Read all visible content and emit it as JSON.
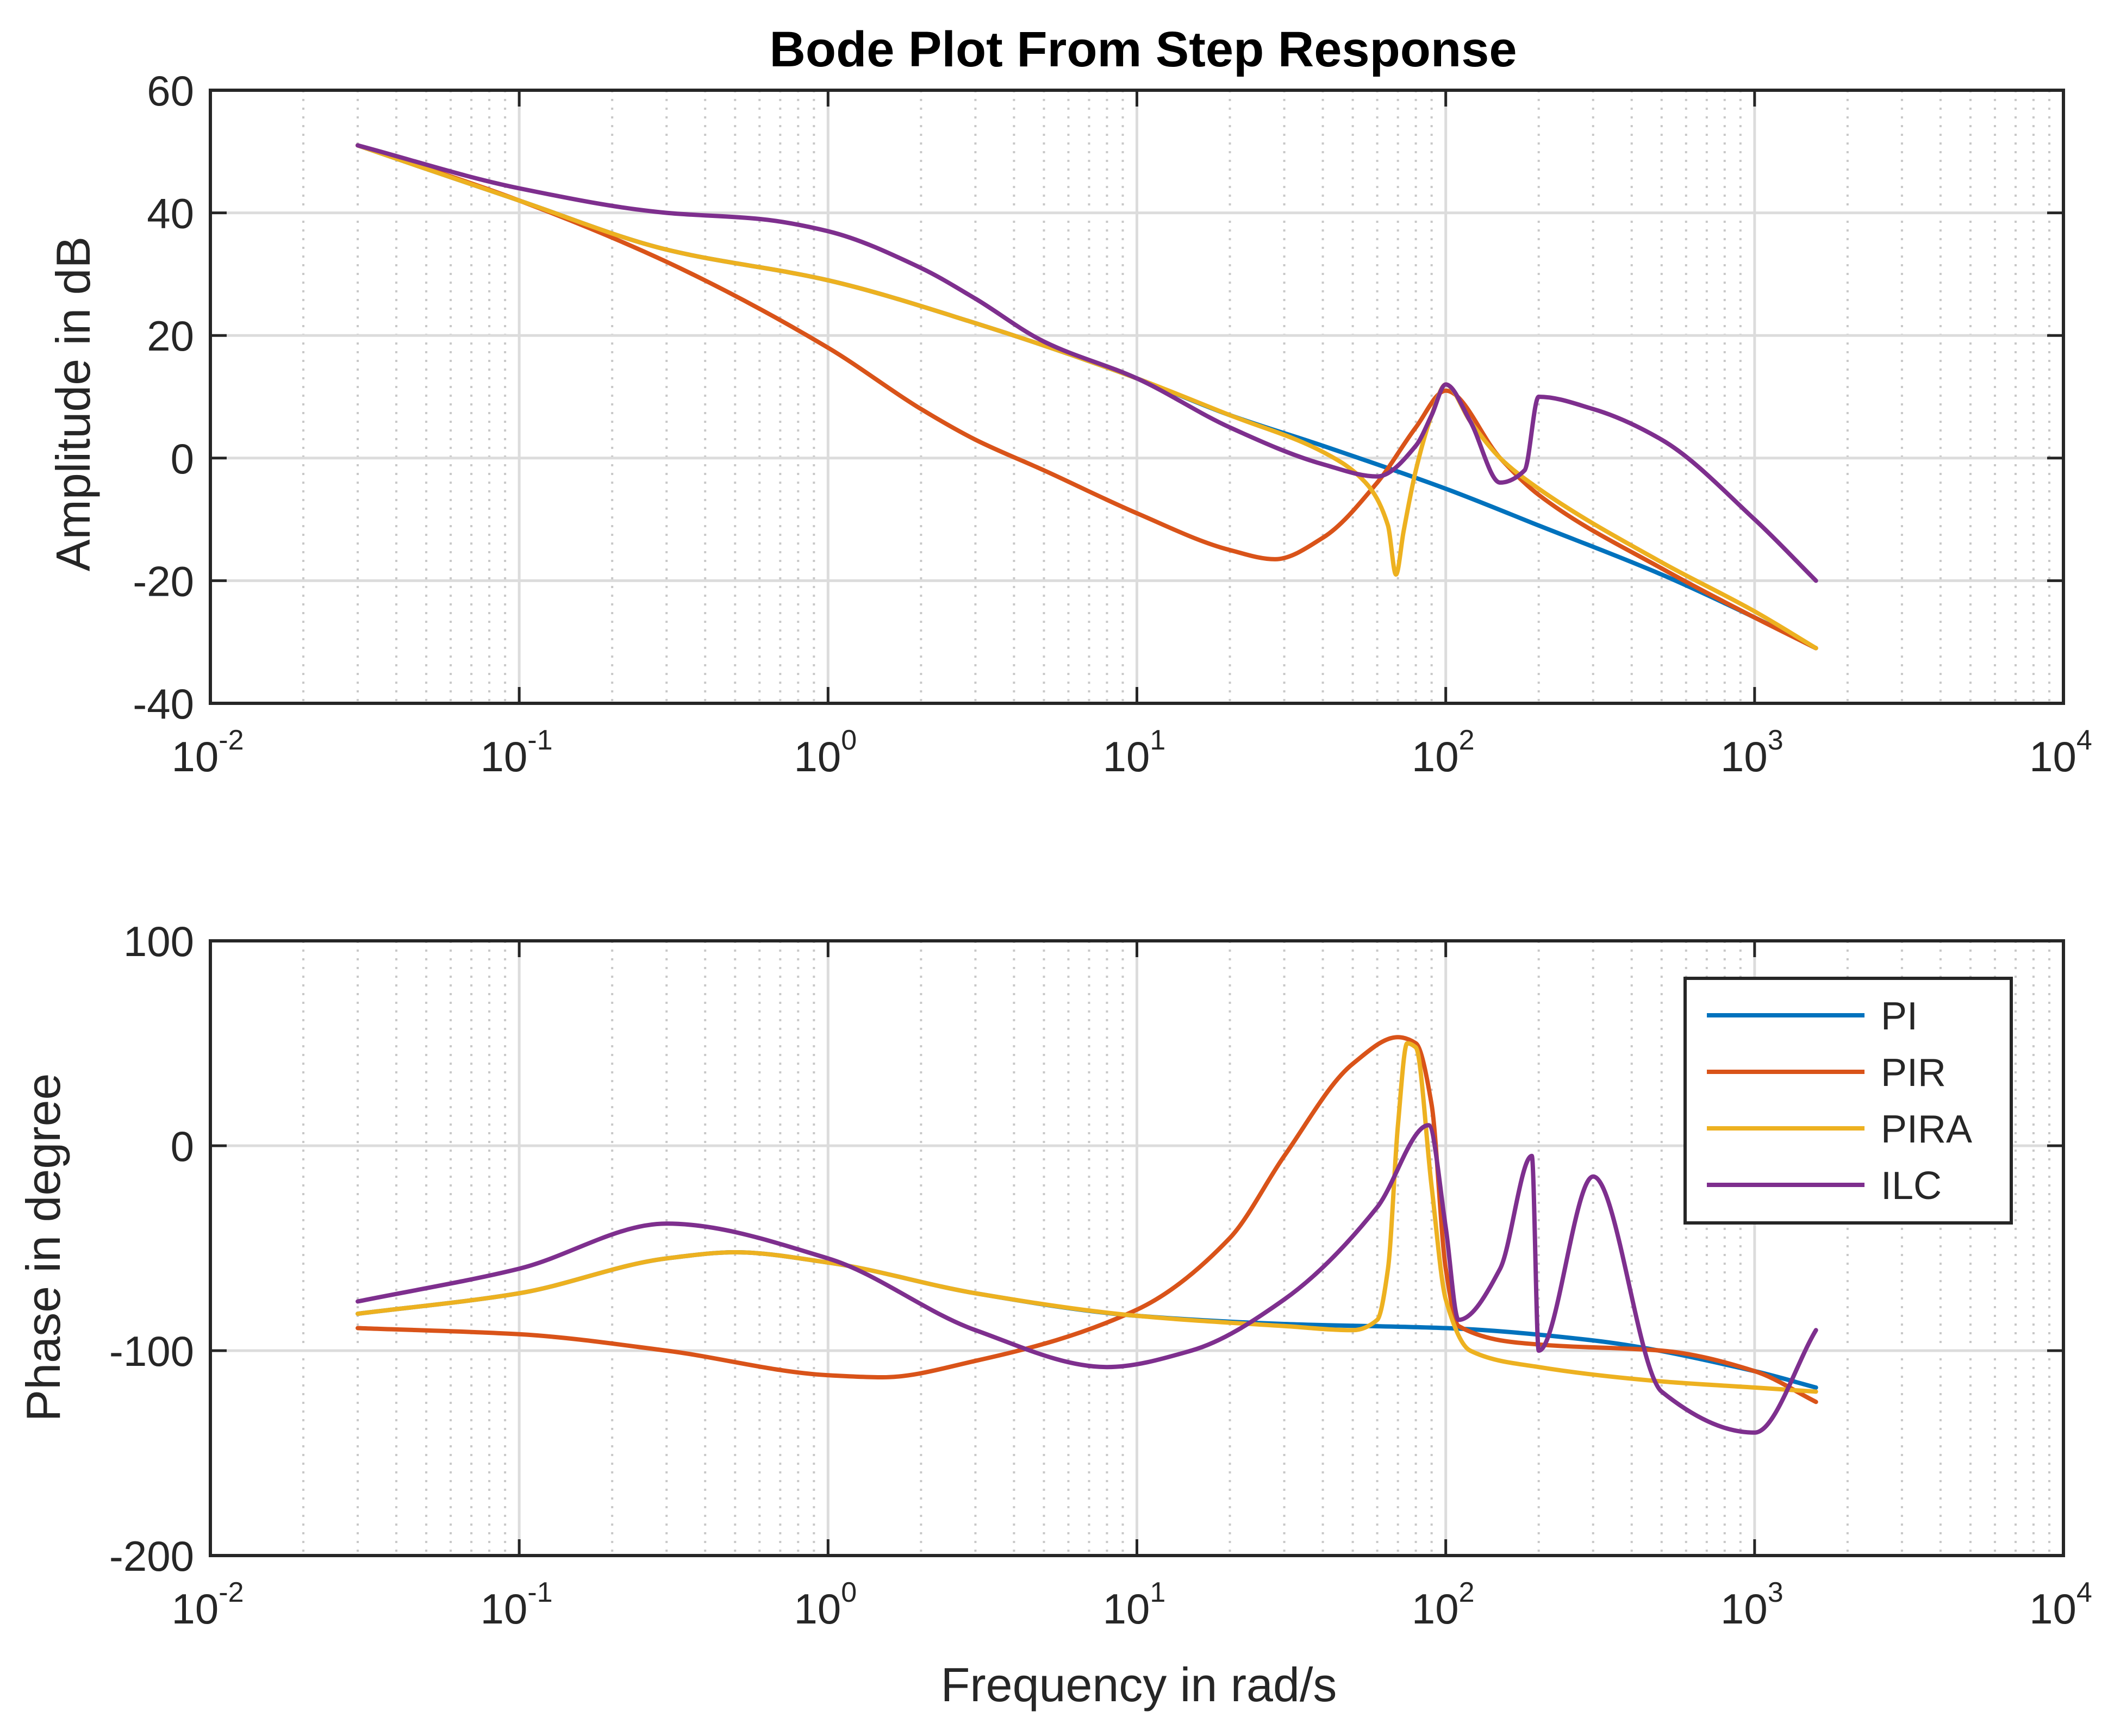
{
  "chart_data": [
    {
      "type": "line",
      "id": "magnitude",
      "title": "Bode Plot From Step Response",
      "xlabel": "",
      "ylabel": "Amplitude in dB",
      "xscale": "log",
      "xlim": [
        0.01,
        10000
      ],
      "ylim": [
        -40,
        60
      ],
      "grid": true,
      "minor_grid": true,
      "x_ticks": [
        {
          "base": "10",
          "exp": "-2",
          "value": 0.01
        },
        {
          "base": "10",
          "exp": "-1",
          "value": 0.1
        },
        {
          "base": "10",
          "exp": "0",
          "value": 1
        },
        {
          "base": "10",
          "exp": "1",
          "value": 10
        },
        {
          "base": "10",
          "exp": "2",
          "value": 100
        },
        {
          "base": "10",
          "exp": "3",
          "value": 1000
        },
        {
          "base": "10",
          "exp": "4",
          "value": 10000
        }
      ],
      "y_ticks": [
        {
          "label": "60",
          "value": 60
        },
        {
          "label": "40",
          "value": 40
        },
        {
          "label": "20",
          "value": 20
        },
        {
          "label": "0",
          "value": 0
        },
        {
          "label": "-20",
          "value": -20
        },
        {
          "label": "-40",
          "value": -40
        }
      ],
      "series": [
        {
          "name": "PI",
          "color": "#0072BD",
          "x": [
            0.03,
            0.1,
            0.3,
            1,
            3,
            10,
            20,
            40,
            100,
            200,
            500,
            1000,
            1580
          ],
          "y": [
            51,
            42,
            34,
            29,
            22,
            13,
            7,
            2,
            -5,
            -11,
            -19,
            -26,
            -31
          ]
        },
        {
          "name": "PIR",
          "color": "#D95319",
          "x": [
            0.03,
            0.1,
            0.3,
            1,
            2,
            3,
            5,
            10,
            20,
            28,
            40,
            60,
            80,
            100,
            150,
            200,
            500,
            1000,
            1580
          ],
          "y": [
            51,
            42,
            32,
            18,
            8,
            3,
            -2,
            -9,
            -15,
            -16.5,
            -13,
            -4,
            5,
            11,
            0,
            -6,
            -18,
            -26,
            -31
          ]
        },
        {
          "name": "PIRA",
          "color": "#EDB120",
          "x": [
            0.03,
            0.1,
            0.3,
            1,
            3,
            10,
            20,
            40,
            55,
            65,
            69,
            73,
            80,
            90,
            100,
            120,
            150,
            200,
            500,
            1000,
            1580
          ],
          "y": [
            51,
            42,
            34,
            29,
            22,
            13,
            7,
            1,
            -4,
            -11,
            -19,
            -12,
            -2,
            7,
            12,
            6,
            0,
            -5,
            -17,
            -25,
            -31
          ]
        },
        {
          "name": "ILC",
          "color": "#7E2F8E",
          "x": [
            0.03,
            0.1,
            0.3,
            0.6,
            1,
            2,
            3,
            5,
            10,
            20,
            40,
            60,
            80,
            90,
            100,
            120,
            150,
            180,
            200,
            300,
            500,
            1000,
            1580
          ],
          "y": [
            51,
            44,
            40,
            39,
            37,
            31,
            26,
            19,
            13,
            5,
            -1,
            -3,
            2,
            7,
            12,
            6,
            -4,
            -2,
            10,
            8,
            3,
            -10,
            -20
          ]
        }
      ]
    },
    {
      "type": "line",
      "id": "phase",
      "title": "",
      "xlabel": "Frequency in rad/s",
      "ylabel": "Phase in degree",
      "xscale": "log",
      "xlim": [
        0.01,
        10000
      ],
      "ylim": [
        -200,
        100
      ],
      "grid": true,
      "minor_grid": true,
      "legend_position": "top-right",
      "x_ticks": [
        {
          "base": "10",
          "exp": "-2",
          "value": 0.01
        },
        {
          "base": "10",
          "exp": "-1",
          "value": 0.1
        },
        {
          "base": "10",
          "exp": "0",
          "value": 1
        },
        {
          "base": "10",
          "exp": "1",
          "value": 10
        },
        {
          "base": "10",
          "exp": "2",
          "value": 100
        },
        {
          "base": "10",
          "exp": "3",
          "value": 1000
        },
        {
          "base": "10",
          "exp": "4",
          "value": 10000
        }
      ],
      "y_ticks": [
        {
          "label": "100",
          "value": 100
        },
        {
          "label": "0",
          "value": 0
        },
        {
          "label": "-100",
          "value": -100
        },
        {
          "label": "-200",
          "value": -200
        }
      ],
      "series": [
        {
          "name": "PI",
          "color": "#0072BD",
          "x": [
            0.03,
            0.1,
            0.3,
            0.5,
            1,
            3,
            10,
            30,
            100,
            300,
            1000,
            1580
          ],
          "y": [
            -82,
            -72,
            -55,
            -52,
            -57,
            -72,
            -83,
            -87,
            -89,
            -95,
            -110,
            -118
          ]
        },
        {
          "name": "PIR",
          "color": "#D95319",
          "x": [
            0.03,
            0.1,
            0.3,
            1,
            1.5,
            3,
            10,
            20,
            30,
            50,
            70,
            80,
            90,
            100,
            110,
            200,
            500,
            1000,
            1580
          ],
          "y": [
            -89,
            -92,
            -100,
            -112,
            -113,
            -105,
            -80,
            -45,
            -5,
            40,
            53,
            50,
            20,
            -60,
            -88,
            -97,
            -100,
            -110,
            -125
          ]
        },
        {
          "name": "PIRA",
          "color": "#EDB120",
          "x": [
            0.03,
            0.1,
            0.3,
            0.5,
            1,
            3,
            10,
            30,
            50,
            60,
            65,
            70,
            75,
            80,
            90,
            100,
            120,
            200,
            500,
            1000,
            1580
          ],
          "y": [
            -82,
            -72,
            -55,
            -52,
            -57,
            -72,
            -83,
            -88,
            -90,
            -85,
            -60,
            10,
            50,
            48,
            -20,
            -75,
            -100,
            -108,
            -115,
            -118,
            -120
          ]
        },
        {
          "name": "ILC",
          "color": "#7E2F8E",
          "x": [
            0.03,
            0.1,
            0.3,
            1,
            3,
            8,
            15,
            30,
            60,
            88,
            100,
            110,
            150,
            190,
            200,
            300,
            500,
            1000,
            1580
          ],
          "y": [
            -76,
            -60,
            -38,
            -55,
            -90,
            -108,
            -100,
            -75,
            -30,
            10,
            -40,
            -85,
            -60,
            -5,
            -100,
            -15,
            -120,
            -140,
            -90
          ]
        }
      ]
    }
  ]
}
